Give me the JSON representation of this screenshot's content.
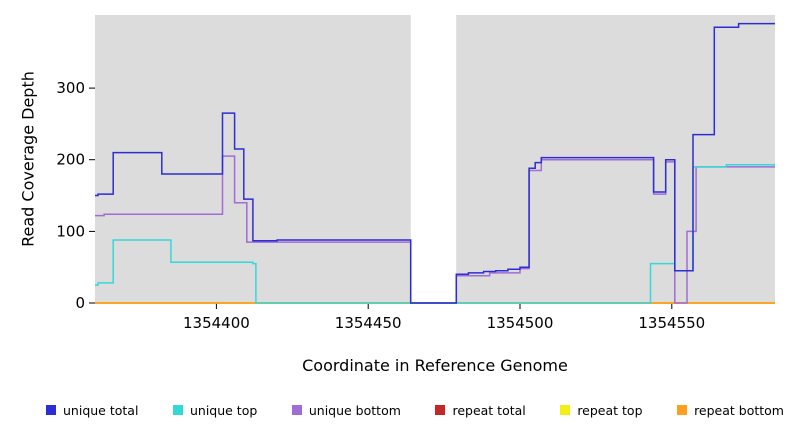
{
  "figure": {
    "xlabel": "Coordinate in Reference Genome",
    "ylabel": "Read Coverage Depth"
  },
  "legend": {
    "items": [
      {
        "label": "unique total",
        "color": "#2d2dd3"
      },
      {
        "label": "unique top",
        "color": "#35d8d8"
      },
      {
        "label": "unique bottom",
        "color": "#a06cd5"
      },
      {
        "label": "repeat total",
        "color": "#c62828"
      },
      {
        "label": "repeat top",
        "color": "#f3ef12"
      },
      {
        "label": "repeat bottom",
        "color": "#ff9e1b"
      }
    ]
  },
  "chart_data": {
    "type": "line",
    "step": true,
    "title": "",
    "xlabel": "Coordinate in Reference Genome",
    "ylabel": "Read Coverage Depth",
    "xlim": [
      1354360,
      1354584
    ],
    "ylim": [
      0,
      402
    ],
    "x_ticks": [
      1354400,
      1354450,
      1354500,
      1354550
    ],
    "y_ticks": [
      0,
      100,
      200,
      300
    ],
    "grid": false,
    "legend_position": "bottom",
    "panel_bg": "#dcdcdc",
    "gap_region": {
      "x_start": 1354464,
      "x_end": 1354479,
      "color": "#ffffff"
    },
    "series": [
      {
        "name": "repeat total",
        "color": "#c62828",
        "steps": [
          [
            1354360,
            0
          ]
        ]
      },
      {
        "name": "repeat top",
        "color": "#f3ef12",
        "steps": [
          [
            1354360,
            0
          ]
        ]
      },
      {
        "name": "repeat bottom",
        "color": "#ff9e1b",
        "steps": [
          [
            1354360,
            0
          ]
        ]
      },
      {
        "name": "unique bottom",
        "color": "#a06cd5",
        "steps": [
          [
            1354360,
            122
          ],
          [
            1354363,
            124
          ],
          [
            1354402,
            205
          ],
          [
            1354406,
            140
          ],
          [
            1354410,
            85
          ],
          [
            1354464,
            0
          ],
          [
            1354479,
            38
          ],
          [
            1354490,
            42
          ],
          [
            1354500,
            48
          ],
          [
            1354503,
            185
          ],
          [
            1354507,
            200
          ],
          [
            1354544,
            152
          ],
          [
            1354548,
            197
          ],
          [
            1354551,
            0
          ],
          [
            1354555,
            100
          ],
          [
            1354558,
            190
          ]
        ]
      },
      {
        "name": "unique top",
        "color": "#35d8d8",
        "steps": [
          [
            1354360,
            25
          ],
          [
            1354361,
            28
          ],
          [
            1354366,
            88
          ],
          [
            1354385,
            57
          ],
          [
            1354412,
            55
          ],
          [
            1354413,
            0
          ],
          [
            1354543,
            55
          ],
          [
            1354551,
            45
          ],
          [
            1354557,
            190
          ],
          [
            1354568,
            193
          ]
        ]
      },
      {
        "name": "unique total",
        "color": "#2d2dd3",
        "steps": [
          [
            1354360,
            150
          ],
          [
            1354361,
            152
          ],
          [
            1354366,
            210
          ],
          [
            1354382,
            180
          ],
          [
            1354402,
            265
          ],
          [
            1354406,
            215
          ],
          [
            1354409,
            145
          ],
          [
            1354412,
            87
          ],
          [
            1354420,
            88
          ],
          [
            1354464,
            0
          ],
          [
            1354479,
            40
          ],
          [
            1354483,
            42
          ],
          [
            1354488,
            44
          ],
          [
            1354492,
            45
          ],
          [
            1354496,
            47
          ],
          [
            1354500,
            50
          ],
          [
            1354503,
            188
          ],
          [
            1354505,
            196
          ],
          [
            1354507,
            203
          ],
          [
            1354544,
            155
          ],
          [
            1354548,
            200
          ],
          [
            1354551,
            45
          ],
          [
            1354557,
            235
          ],
          [
            1354564,
            385
          ],
          [
            1354572,
            390
          ]
        ]
      }
    ]
  }
}
